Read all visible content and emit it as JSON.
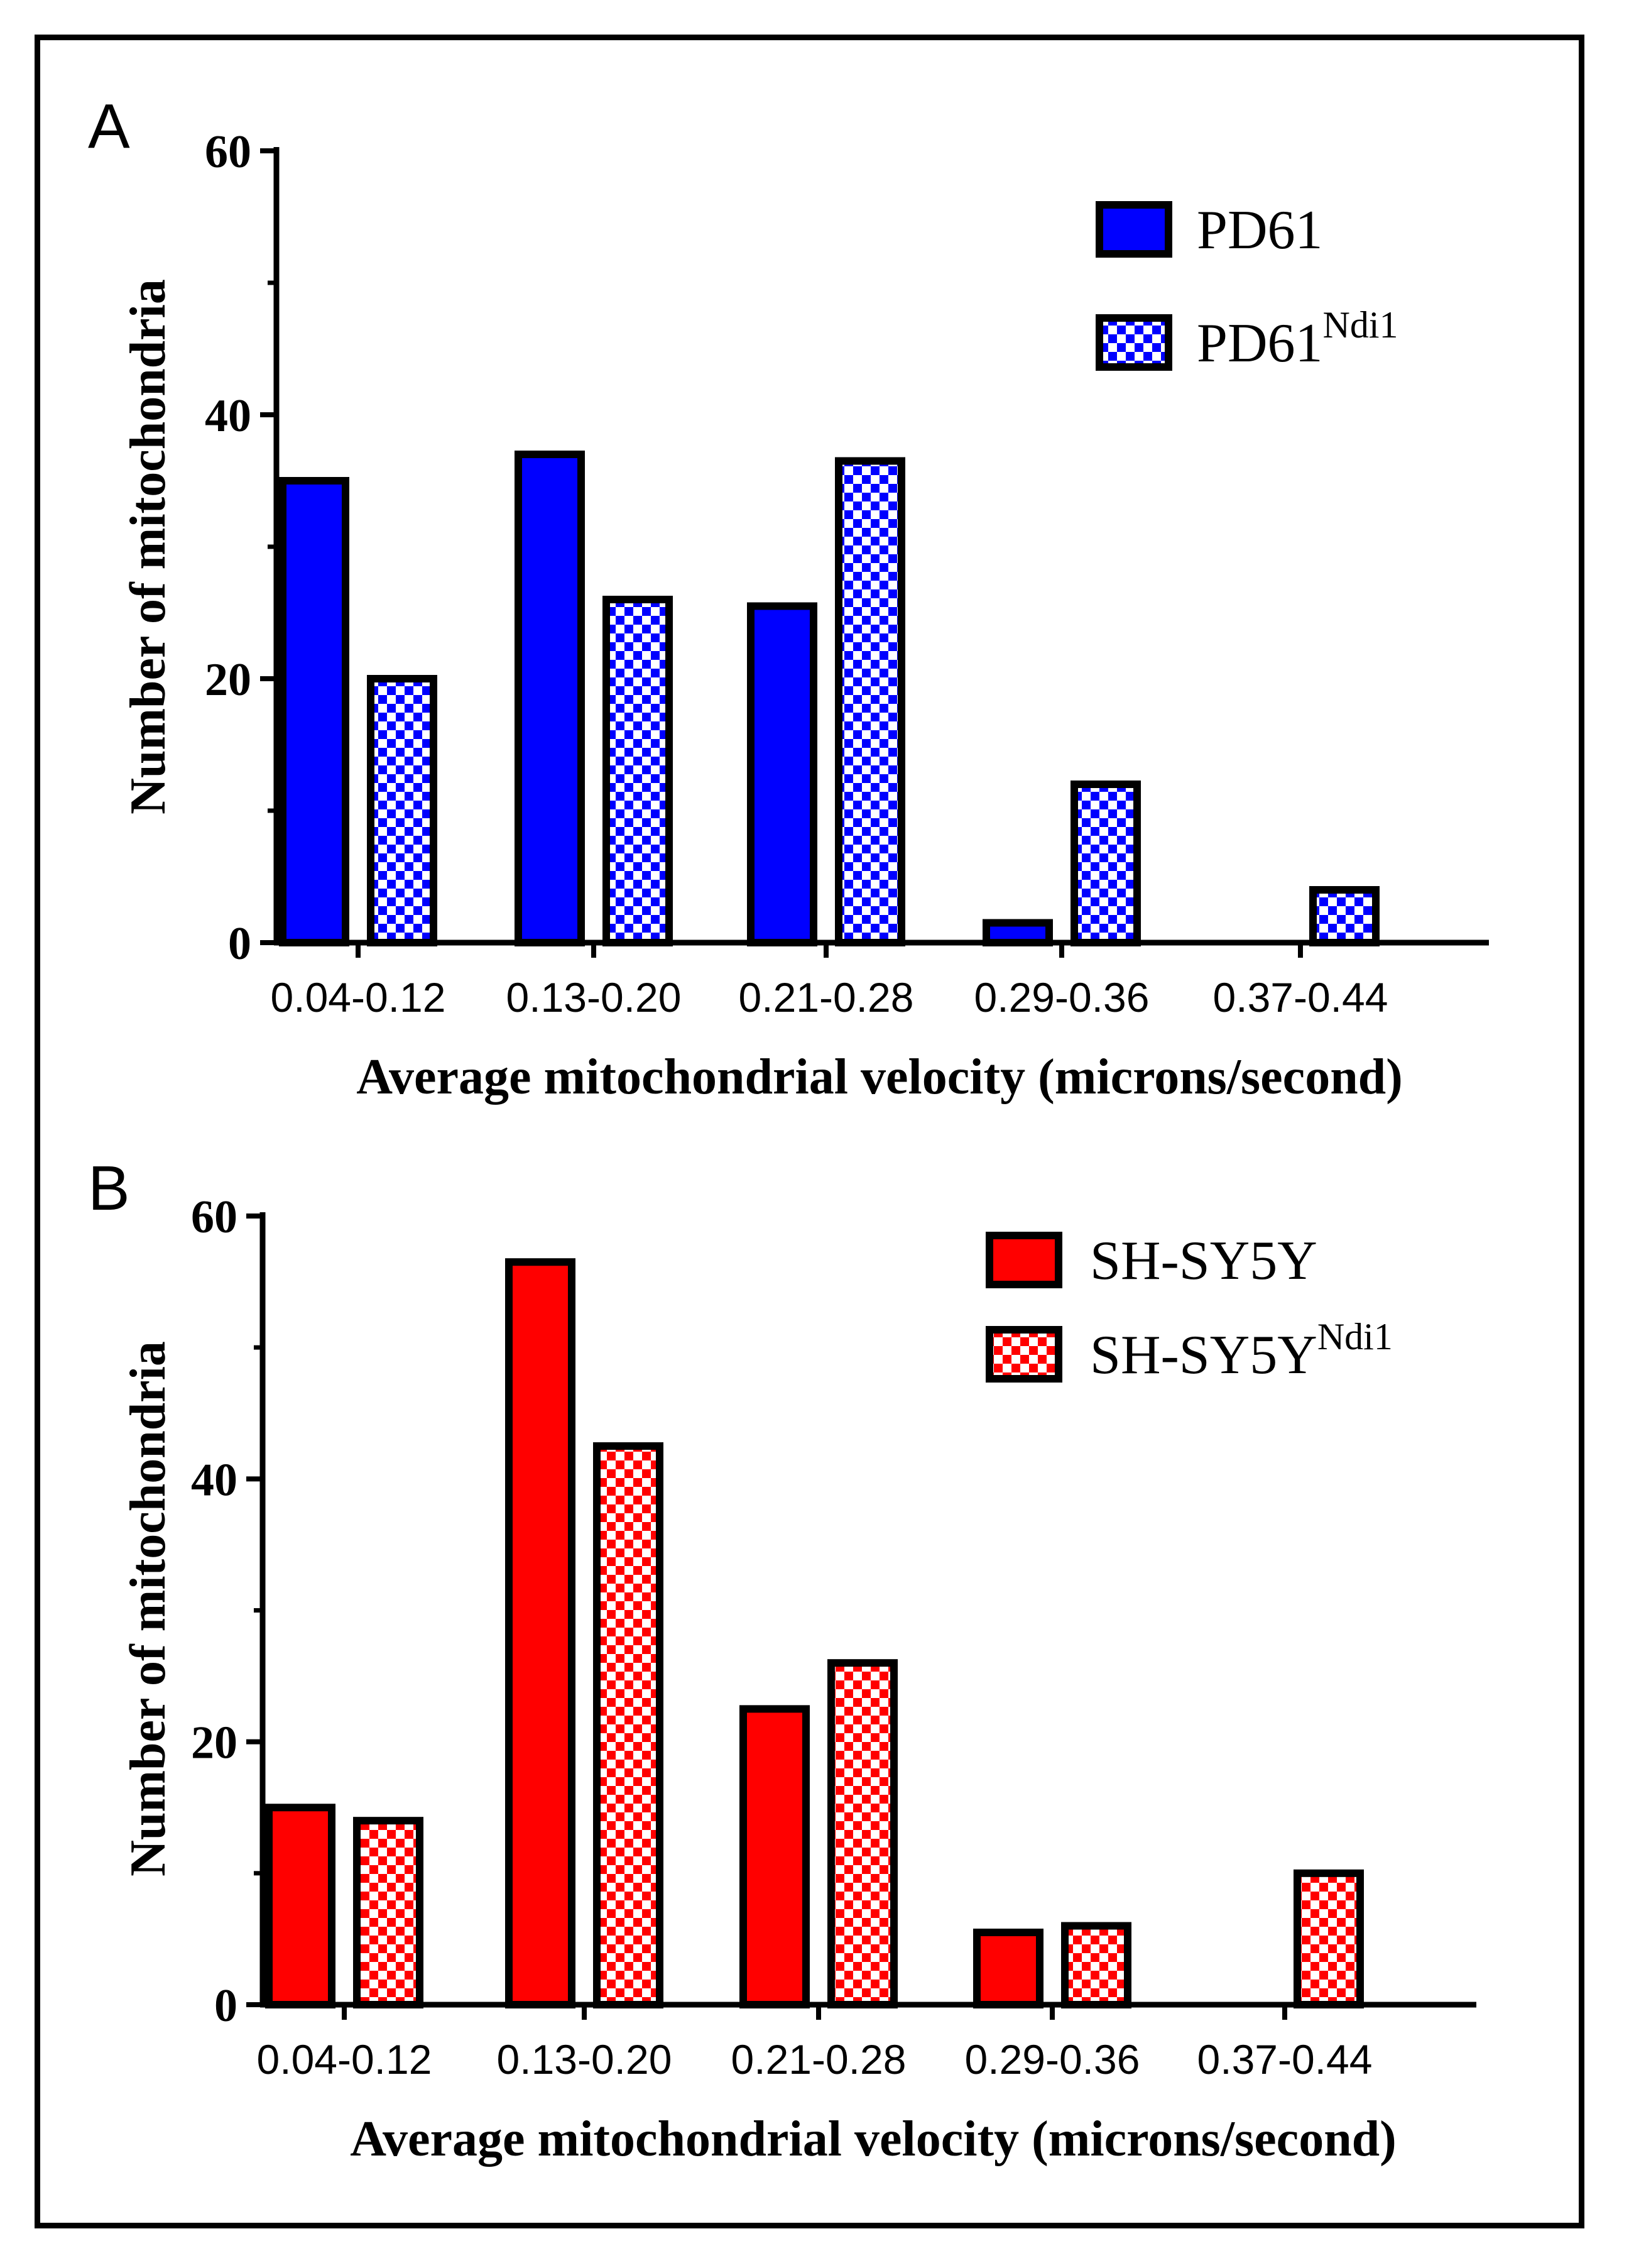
{
  "chart_data": [
    {
      "panel_label": "A",
      "type": "bar",
      "title": "",
      "xlabel": "Average mitochondrial velocity  (microns/second)",
      "ylabel": "Number of mitochondria",
      "ylim": [
        0,
        60
      ],
      "yticks": [
        0,
        20,
        40,
        60
      ],
      "categories": [
        "0.04-0.12",
        "0.13-0.20",
        "0.21-0.28",
        "0.29-0.36",
        "0.37-0.44"
      ],
      "legend_position": "top-right",
      "series": [
        {
          "name": "PD61",
          "superscript": "",
          "color": "#0000ff",
          "pattern": "solid",
          "values": [
            35,
            37,
            25.5,
            1.5,
            0
          ]
        },
        {
          "name": "PD61",
          "superscript": "Ndi1",
          "color": "#0000ff",
          "pattern": "checker",
          "values": [
            20,
            26,
            36.5,
            12,
            4
          ]
        }
      ]
    },
    {
      "panel_label": "B",
      "type": "bar",
      "title": "",
      "xlabel": "Average mitochondrial velocity  (microns/second)",
      "ylabel": "Number of mitochondria",
      "ylim": [
        0,
        60
      ],
      "yticks": [
        0,
        20,
        40,
        60
      ],
      "categories": [
        "0.04-0.12",
        "0.13-0.20",
        "0.21-0.28",
        "0.29-0.36",
        "0.37-0.44"
      ],
      "legend_position": "top-right",
      "series": [
        {
          "name": "SH-SY5Y",
          "superscript": "",
          "color": "#ff0000",
          "pattern": "solid",
          "values": [
            15,
            56.5,
            22.5,
            5.5,
            0
          ]
        },
        {
          "name": "SH-SY5Y",
          "superscript": "Ndi1",
          "color": "#ff0000",
          "pattern": "checker",
          "values": [
            14,
            42.5,
            26,
            6,
            10
          ]
        }
      ]
    }
  ]
}
